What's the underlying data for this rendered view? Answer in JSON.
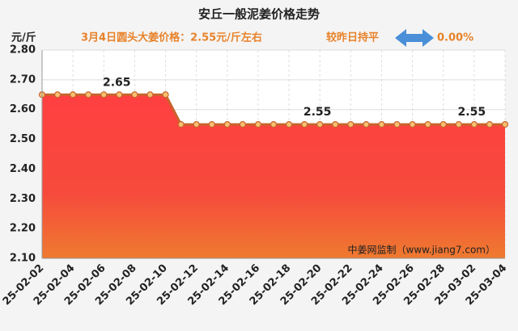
{
  "chart_data": {
    "type": "area",
    "title": "安丘一般泥姜价格走势",
    "y_label": "元/斤",
    "subtitle": "3月4日圆头大姜价格：2.55元/斤左右",
    "change_text": "较昨日持平",
    "change_value": "0.00%",
    "watermark": "中姜网监制（www.jiang7.com）",
    "categories": [
      "25-02-02",
      null,
      "25-02-04",
      null,
      "25-02-06",
      null,
      "25-02-08",
      null,
      "25-02-10",
      null,
      "25-02-12",
      null,
      "25-02-14",
      null,
      "25-02-16",
      null,
      "25-02-18",
      null,
      "25-02-20",
      null,
      "25-02-22",
      null,
      "25-02-24",
      null,
      "25-02-26",
      null,
      "25-02-28",
      null,
      "25-03-02",
      null,
      "25-03-04"
    ],
    "values": [
      2.65,
      2.65,
      2.65,
      2.65,
      2.65,
      2.65,
      2.65,
      2.65,
      2.65,
      2.55,
      2.55,
      2.55,
      2.55,
      2.55,
      2.55,
      2.55,
      2.55,
      2.55,
      2.55,
      2.55,
      2.55,
      2.55,
      2.55,
      2.55,
      2.55,
      2.55,
      2.55,
      2.55,
      2.55,
      2.55,
      2.55
    ],
    "value_labels": [
      null,
      null,
      null,
      null,
      "2.65",
      null,
      null,
      null,
      null,
      null,
      null,
      null,
      null,
      null,
      null,
      null,
      null,
      "2.55",
      null,
      null,
      null,
      null,
      null,
      null,
      null,
      null,
      null,
      "2.55",
      null,
      null,
      null
    ],
    "color": "#c8642c",
    "ylim": [
      2.1,
      2.8
    ],
    "yticks": [
      {
        "value": 2.1,
        "label": "2.10"
      },
      {
        "value": 2.2,
        "label": "2.20"
      },
      {
        "value": 2.3,
        "label": "2.30"
      },
      {
        "value": 2.4,
        "label": "2.40"
      },
      {
        "value": 2.5,
        "label": "2.50"
      },
      {
        "value": 2.6,
        "label": "2.60"
      },
      {
        "value": 2.7,
        "label": "2.70"
      },
      {
        "value": 2.8,
        "label": "2.80"
      }
    ],
    "grid": true
  }
}
